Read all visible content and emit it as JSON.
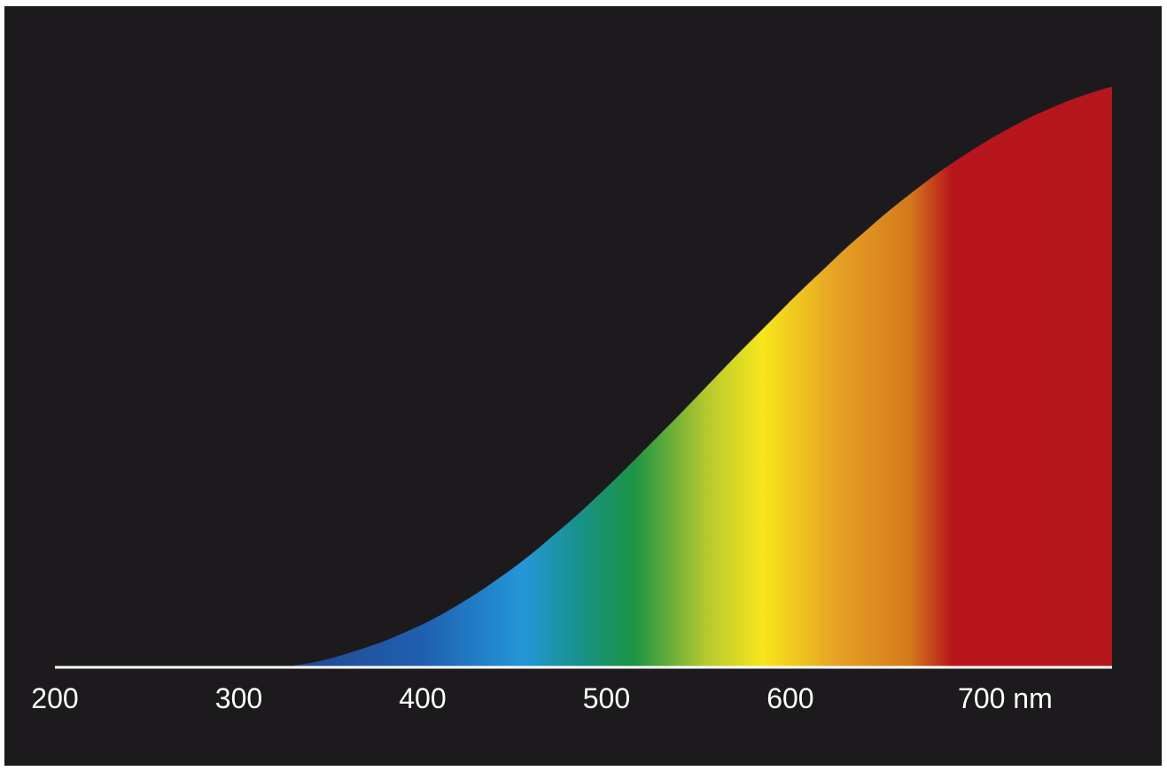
{
  "chart_data": {
    "type": "area",
    "title": "",
    "xlabel": "",
    "ylabel": "",
    "x_unit": "nm",
    "xlim": [
      200,
      775
    ],
    "ylim": [
      0,
      1
    ],
    "grid": false,
    "legend": "none",
    "background_color": "#1c1a1d",
    "axis_color": "#ffffff",
    "x_ticks": [
      {
        "value": 200,
        "label": "200"
      },
      {
        "value": 300,
        "label": "300"
      },
      {
        "value": 400,
        "label": "400"
      },
      {
        "value": 500,
        "label": "500"
      },
      {
        "value": 600,
        "label": "600"
      },
      {
        "value": 700,
        "label": "700 nm"
      }
    ],
    "series": [
      {
        "x": [
          330,
          340,
          350,
          360,
          370,
          380,
          390,
          400,
          410,
          420,
          430,
          440,
          450,
          460,
          470,
          480,
          490,
          500,
          510,
          520,
          530,
          540,
          550,
          560,
          570,
          580,
          590,
          600,
          610,
          620,
          630,
          640,
          650,
          660,
          670,
          680,
          690,
          700,
          710,
          720,
          730,
          740,
          750,
          760,
          770,
          775
        ],
        "y": [
          0.003,
          0.008,
          0.015,
          0.024,
          0.034,
          0.045,
          0.058,
          0.072,
          0.088,
          0.106,
          0.125,
          0.146,
          0.168,
          0.192,
          0.218,
          0.244,
          0.272,
          0.301,
          0.331,
          0.362,
          0.393,
          0.424,
          0.456,
          0.488,
          0.52,
          0.551,
          0.582,
          0.613,
          0.643,
          0.672,
          0.701,
          0.728,
          0.755,
          0.78,
          0.804,
          0.827,
          0.848,
          0.868,
          0.887,
          0.904,
          0.92,
          0.934,
          0.947,
          0.958,
          0.968,
          0.972
        ]
      }
    ],
    "spectrum_colors": [
      {
        "nm": 330,
        "color": "#24488f"
      },
      {
        "nm": 400,
        "color": "#1f5fb0"
      },
      {
        "nm": 455,
        "color": "#2497d8"
      },
      {
        "nm": 485,
        "color": "#17928a"
      },
      {
        "nm": 515,
        "color": "#1c9443"
      },
      {
        "nm": 555,
        "color": "#b7c92e"
      },
      {
        "nm": 585,
        "color": "#f8e61c"
      },
      {
        "nm": 625,
        "color": "#e5a224"
      },
      {
        "nm": 665,
        "color": "#d47a1c"
      },
      {
        "nm": 688,
        "color": "#b8161c"
      },
      {
        "nm": 775,
        "color": "#b3161c"
      }
    ]
  }
}
